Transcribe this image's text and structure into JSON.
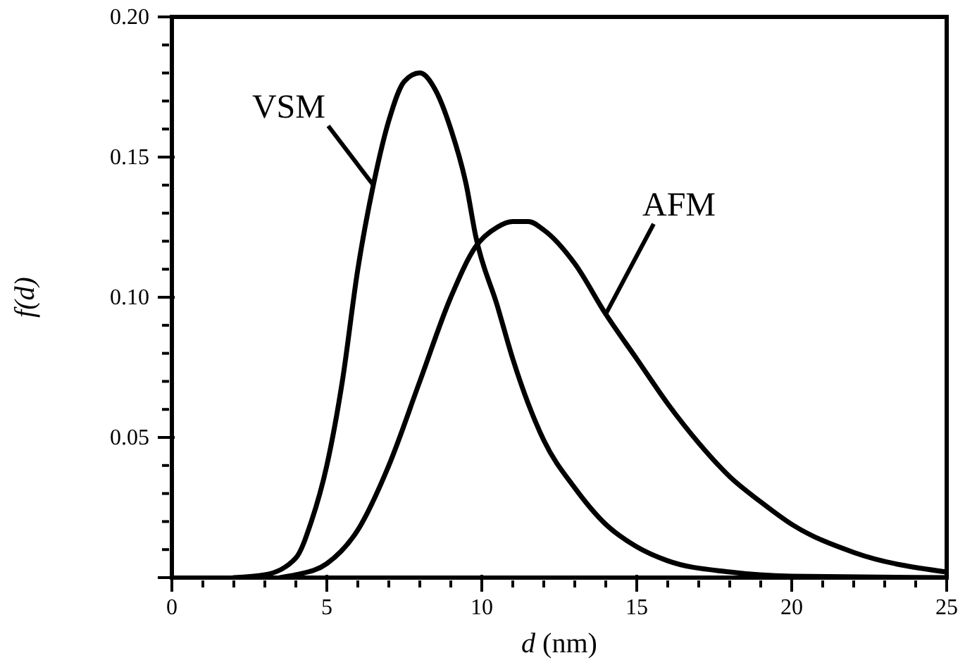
{
  "chart_data": {
    "type": "line",
    "xlabel": "d (nm)",
    "ylabel": "f(d)",
    "xlim": [
      0,
      25
    ],
    "ylim": [
      0,
      0.2
    ],
    "xticks": [
      0,
      {
        "value": 1,
        "label": null
      },
      {
        "value": 2,
        "label": null
      },
      {
        "value": 3,
        "label": null
      },
      {
        "value": 4,
        "label": null
      },
      5,
      {
        "value": 6,
        "label": null
      },
      {
        "value": 7,
        "label": null
      },
      {
        "value": 8,
        "label": null
      },
      {
        "value": 9,
        "label": null
      },
      10,
      {
        "value": 11,
        "label": null
      },
      {
        "value": 12,
        "label": null
      },
      {
        "value": 13,
        "label": null
      },
      {
        "value": 14,
        "label": null
      },
      15,
      {
        "value": 16,
        "label": null
      },
      {
        "value": 17,
        "label": null
      },
      {
        "value": 18,
        "label": null
      },
      {
        "value": 19,
        "label": null
      },
      20,
      {
        "value": 21,
        "label": null
      },
      {
        "value": 22,
        "label": null
      },
      {
        "value": 23,
        "label": null
      },
      {
        "value": 24,
        "label": null
      },
      25
    ],
    "yticks": [
      {
        "value": 0,
        "label": null
      },
      {
        "value": 0.01,
        "label": null
      },
      {
        "value": 0.02,
        "label": null
      },
      {
        "value": 0.03,
        "label": null
      },
      {
        "value": 0.04,
        "label": null
      },
      {
        "value": 0.05,
        "label": "0.05"
      },
      {
        "value": 0.06,
        "label": null
      },
      {
        "value": 0.07,
        "label": null
      },
      {
        "value": 0.08,
        "label": null
      },
      {
        "value": 0.09,
        "label": null
      },
      {
        "value": 0.1,
        "label": "0.10"
      },
      {
        "value": 0.11,
        "label": null
      },
      {
        "value": 0.12,
        "label": null
      },
      {
        "value": 0.13,
        "label": null
      },
      {
        "value": 0.14,
        "label": null
      },
      {
        "value": 0.15,
        "label": "0.15"
      },
      {
        "value": 0.16,
        "label": null
      },
      {
        "value": 0.17,
        "label": null
      },
      {
        "value": 0.18,
        "label": null
      },
      {
        "value": 0.19,
        "label": null
      },
      {
        "value": 0.2,
        "label": "0.20"
      }
    ],
    "marker": "none",
    "line_style": "solid",
    "series": [
      {
        "name": "VSM",
        "color": "#000000",
        "x": [
          2,
          3,
          4,
          4.5,
          5,
          5.5,
          6,
          6.5,
          7,
          7.5,
          8,
          8.5,
          9,
          9.5,
          9.8,
          10.5,
          11,
          11.5,
          12,
          13,
          14,
          15,
          16,
          18,
          20,
          25
        ],
        "values": [
          0,
          0.001,
          0.007,
          0.02,
          0.04,
          0.07,
          0.11,
          0.14,
          0.163,
          0.177,
          0.18,
          0.174,
          0.16,
          0.14,
          0.122,
          0.097,
          0.078,
          0.062,
          0.049,
          0.032,
          0.019,
          0.011,
          0.006,
          0.002,
          0.0005,
          0
        ]
      },
      {
        "name": "AFM",
        "color": "#000000",
        "x": [
          3.5,
          4,
          5,
          6,
          7,
          8,
          9,
          9.8,
          10.5,
          11,
          11.5,
          12,
          13,
          14,
          15,
          16,
          17,
          18,
          19,
          20,
          22,
          25
        ],
        "values": [
          0,
          0.001,
          0.005,
          0.017,
          0.04,
          0.07,
          0.1,
          0.118,
          0.125,
          0.127,
          0.127,
          0.124,
          0.112,
          0.094,
          0.078,
          0.062,
          0.048,
          0.036,
          0.027,
          0.019,
          0.009,
          0.002
        ]
      }
    ]
  }
}
